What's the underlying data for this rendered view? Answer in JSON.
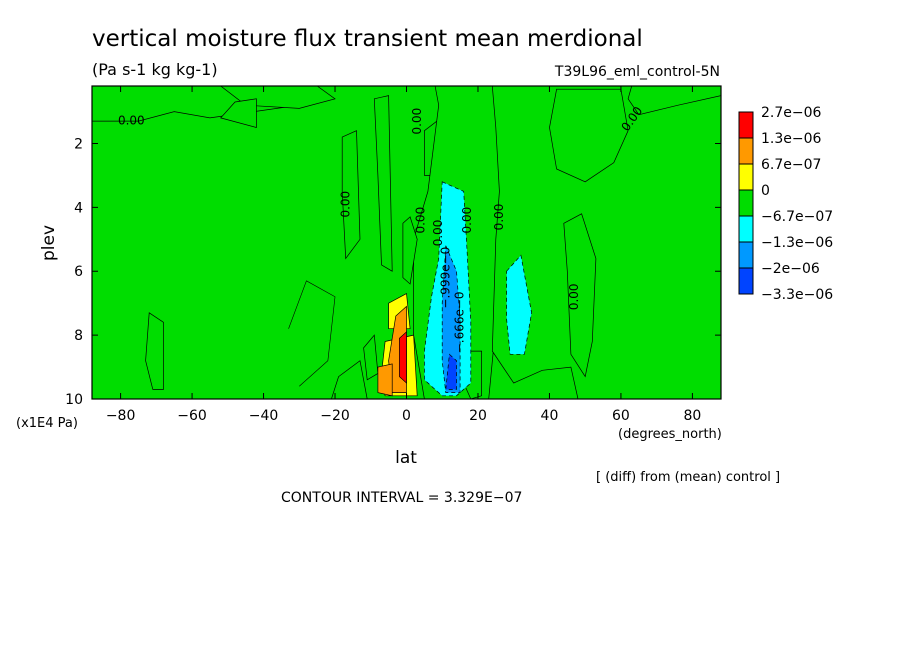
{
  "chart_data": {
    "type": "heatmap",
    "title": "vertical moisture flux transient mean merdional",
    "subtitle": "(Pa s-1 kg kg-1)",
    "experiment": "T39L96_eml_control-5N",
    "xlabel": "lat",
    "x_units": "(degrees_north)",
    "ylabel": "plev",
    "y_units": "(x1E4 Pa)",
    "xlim": [
      -88,
      88
    ],
    "ylim": [
      0.2,
      10
    ],
    "y_inverted": true,
    "x_ticks": [
      -80,
      -60,
      -40,
      -20,
      0,
      20,
      40,
      60,
      80
    ],
    "x_tick_labels": [
      "−80",
      "−60",
      "−40",
      "−20",
      "0",
      "20",
      "40",
      "60",
      "80"
    ],
    "y_ticks": [
      2,
      4,
      6,
      8,
      10
    ],
    "y_tick_labels": [
      "2",
      "4",
      "6",
      "8",
      "10"
    ],
    "colorbar": {
      "colors": [
        "#ff0000",
        "#ff9900",
        "#ffff00",
        "#00dd00",
        "#00ffff",
        "#0099ff",
        "#0044ff"
      ],
      "labels": [
        "2.7e−06",
        "1.3e−06",
        "6.7e−07",
        "0",
        "−6.7e−07",
        "−1.3e−06",
        "−2e−06",
        "−3.3e−06"
      ]
    },
    "contour_labels": [
      "0.00",
      "0.00",
      "0.00",
      "0.00",
      "0.00",
      "0.00",
      "0.00",
      "0.00",
      "0.00",
      "−.666e−0",
      "−.999e−0"
    ],
    "note": "[ (diff) from (mean) control ]",
    "contour_interval": "CONTOUR INTERVAL = 3.329E−07",
    "regions": [
      {
        "level": 3,
        "pts": [
          [
            -88,
            0.2
          ],
          [
            88,
            0.2
          ],
          [
            88,
            10
          ],
          [
            -88,
            10
          ]
        ]
      },
      {
        "level": 3,
        "pts": [
          [
            -88,
            0.2
          ],
          [
            -30,
            0.2
          ],
          [
            -30,
            0.8
          ],
          [
            -55,
            1.2
          ],
          [
            -65,
            1.0
          ],
          [
            -75,
            1.3
          ],
          [
            -88,
            1.3
          ]
        ]
      },
      {
        "level": 3,
        "pts": [
          [
            -52,
            0.2
          ],
          [
            -25,
            0.2
          ],
          [
            -20,
            0.6
          ],
          [
            -30,
            0.9
          ],
          [
            -45,
            0.8
          ]
        ]
      },
      {
        "level": 3,
        "pts": [
          [
            -48,
            0.7
          ],
          [
            -42,
            0.6
          ],
          [
            -42,
            1.5
          ],
          [
            -52,
            1.2
          ]
        ]
      },
      {
        "level": 3,
        "pts": [
          [
            -18,
            1.8
          ],
          [
            -14,
            1.6
          ],
          [
            -13,
            5.0
          ],
          [
            -17,
            5.6
          ],
          [
            -18,
            3.5
          ]
        ]
      },
      {
        "level": 3,
        "pts": [
          [
            -9,
            0.6
          ],
          [
            -5,
            0.5
          ],
          [
            -4,
            6.0
          ],
          [
            -7,
            5.8
          ],
          [
            -8,
            3.0
          ]
        ]
      },
      {
        "level": 3,
        "pts": [
          [
            -72,
            7.3
          ],
          [
            -68,
            7.6
          ],
          [
            -68,
            9.7
          ],
          [
            -71,
            9.7
          ],
          [
            -73,
            8.8
          ]
        ]
      },
      {
        "level": 3,
        "pts": [
          [
            -19,
            9.3
          ],
          [
            -13,
            8.8
          ],
          [
            -11,
            10
          ],
          [
            -21,
            10
          ]
        ]
      },
      {
        "level": 3,
        "pts": [
          [
            5,
            1.6
          ],
          [
            12,
            1.0
          ],
          [
            13,
            2.4
          ],
          [
            8,
            3.0
          ],
          [
            5,
            3.0
          ]
        ]
      },
      {
        "level": 3,
        "pts": [
          [
            15,
            1.2
          ],
          [
            19,
            1.0
          ],
          [
            21,
            1.6
          ],
          [
            18,
            2.1
          ],
          [
            15,
            1.9
          ]
        ]
      },
      {
        "level": 3,
        "pts": [
          [
            8,
            0.2
          ],
          [
            30,
            0.2
          ],
          [
            29,
            4.5
          ],
          [
            26,
            6.5
          ],
          [
            23,
            10
          ],
          [
            5,
            10
          ],
          [
            2,
            8
          ],
          [
            2,
            5
          ],
          [
            6,
            3.5
          ],
          [
            9,
            0.8
          ]
        ]
      },
      {
        "level": 3,
        "pts": [
          [
            24,
            0.2
          ],
          [
            88,
            0.2
          ],
          [
            88,
            10
          ],
          [
            48,
            10
          ],
          [
            46,
            9.0
          ],
          [
            38,
            9.1
          ],
          [
            30,
            9.5
          ],
          [
            24,
            8.5
          ],
          [
            25,
            5.0
          ],
          [
            26,
            3.5
          ],
          [
            25,
            1.5
          ]
        ]
      },
      {
        "level": 3,
        "pts": [
          [
            42,
            0.3
          ],
          [
            60,
            0.3
          ],
          [
            62,
            1.6
          ],
          [
            58,
            2.6
          ],
          [
            50,
            3.2
          ],
          [
            42,
            2.8
          ],
          [
            40,
            1.5
          ]
        ]
      },
      {
        "level": 3,
        "pts": [
          [
            63,
            0.2
          ],
          [
            88,
            0.2
          ],
          [
            88,
            0.5
          ],
          [
            76,
            0.8
          ],
          [
            65,
            1.1
          ],
          [
            62,
            0.6
          ]
        ]
      },
      {
        "level": 3,
        "pts": [
          [
            44,
            4.5
          ],
          [
            49,
            4.2
          ],
          [
            53,
            5.6
          ],
          [
            52,
            8.2
          ],
          [
            50,
            9.3
          ],
          [
            46,
            8.6
          ],
          [
            45,
            6.0
          ]
        ]
      },
      {
        "level": 3,
        "pts": [
          [
            -1,
            4.5
          ],
          [
            1,
            4.3
          ],
          [
            3,
            5.0
          ],
          [
            1,
            6.4
          ],
          [
            -1,
            6.2
          ]
        ]
      },
      {
        "level": 3,
        "pts": [
          [
            -12,
            8.4
          ],
          [
            -9,
            8.0
          ],
          [
            -8,
            9.2
          ],
          [
            -11,
            9.4
          ]
        ]
      },
      {
        "level": 3,
        "pts": [
          [
            17,
            8.5
          ],
          [
            21,
            8.5
          ],
          [
            21,
            9.9
          ],
          [
            18,
            10
          ],
          [
            16,
            9.5
          ]
        ]
      },
      {
        "level": 2,
        "pts": [
          [
            -6,
            8.2
          ],
          [
            2,
            8.0
          ],
          [
            3,
            9.9
          ],
          [
            -6,
            9.9
          ],
          [
            -7,
            9.2
          ]
        ]
      },
      {
        "level": 2,
        "pts": [
          [
            -5,
            7.0
          ],
          [
            0,
            6.7
          ],
          [
            1,
            7.8
          ],
          [
            -5,
            7.8
          ]
        ]
      },
      {
        "level": 1,
        "pts": [
          [
            -3,
            7.4
          ],
          [
            0,
            7.1
          ],
          [
            0,
            9.8
          ],
          [
            -4,
            9.8
          ],
          [
            -5,
            8.8
          ]
        ]
      },
      {
        "level": 1,
        "pts": [
          [
            -8,
            9.0
          ],
          [
            -4,
            8.9
          ],
          [
            -4,
            9.9
          ],
          [
            -8,
            9.8
          ]
        ]
      },
      {
        "level": 0,
        "pts": [
          [
            -2,
            8.1
          ],
          [
            0,
            7.9
          ],
          [
            0,
            9.5
          ],
          [
            -2,
            9.3
          ]
        ]
      },
      {
        "level": 4,
        "pts": [
          [
            10,
            3.2
          ],
          [
            16,
            3.5
          ],
          [
            17,
            5.5
          ],
          [
            18,
            7.6
          ],
          [
            18,
            9.5
          ],
          [
            14,
            9.9
          ],
          [
            10,
            9.9
          ],
          [
            5,
            9.4
          ],
          [
            5,
            8.5
          ],
          [
            7,
            6.8
          ],
          [
            9,
            5.6
          ]
        ]
      },
      {
        "level": 4,
        "pts": [
          [
            28,
            6.0
          ],
          [
            32,
            5.5
          ],
          [
            35,
            7.3
          ],
          [
            33,
            8.6
          ],
          [
            29,
            8.6
          ],
          [
            28,
            7.5
          ]
        ]
      },
      {
        "level": 5,
        "pts": [
          [
            11,
            5.2
          ],
          [
            14,
            6.0
          ],
          [
            15,
            7.5
          ],
          [
            15,
            9.8
          ],
          [
            11,
            9.8
          ],
          [
            10,
            8.8
          ],
          [
            10,
            7.0
          ]
        ]
      },
      {
        "level": 6,
        "pts": [
          [
            12,
            8.6
          ],
          [
            14,
            8.8
          ],
          [
            14,
            9.7
          ],
          [
            11,
            9.7
          ]
        ]
      }
    ]
  }
}
